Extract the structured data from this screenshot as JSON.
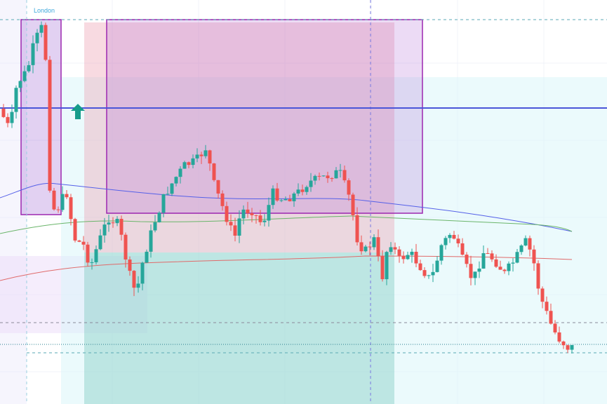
{
  "session_label": "London"
}
